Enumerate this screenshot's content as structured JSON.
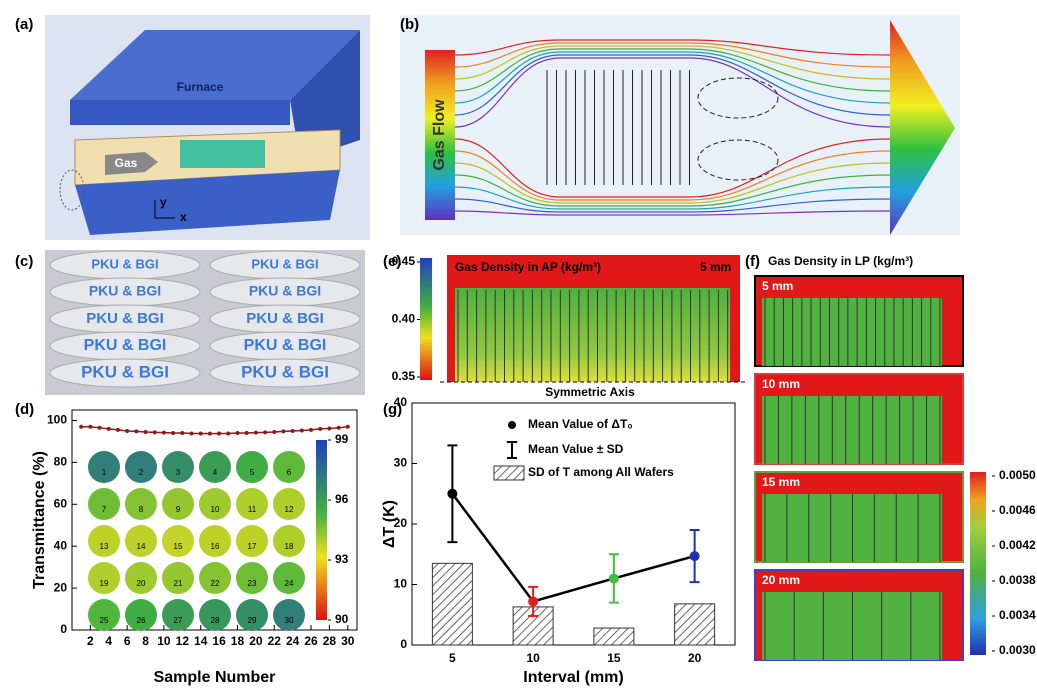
{
  "panels": {
    "a": {
      "label": "(a)",
      "furnace": "Furnace",
      "gas": "Gas",
      "axis_y": "y",
      "axis_x": "x"
    },
    "b": {
      "label": "(b)",
      "gas_flow": "Gas Flow"
    },
    "c": {
      "label": "(c)",
      "wafer_texts": [
        "PKU & BGI",
        "PKU & BGI",
        "PKU & BGI",
        "PKU & BGI",
        "PKU & BGI",
        "PKU & BGI",
        "PKU & BGI",
        "PKU & BGI",
        "PKU & BGI",
        "PKU & BGI"
      ]
    },
    "e": {
      "label": "(e)",
      "title": "Gas Density in AP (kg/m³)",
      "interval": "5 mm",
      "axis": "Symmetric Axis",
      "colorbar": {
        "lim": [
          0.35,
          0.45
        ],
        "ticks": [
          0.35,
          {
            "value": 0.4,
            "label": "0.40"
          },
          0.45
        ]
      }
    },
    "f": {
      "label": "(f)",
      "title": "Gas Density in LP (kg/m³)",
      "intervals": [
        "5 mm",
        "10 mm",
        "15 mm",
        "20 mm"
      ],
      "colorbar": {
        "lim": [
          0.003,
          0.005
        ],
        "ticks": [
          {
            "value": 0.005,
            "label": "0.0050"
          },
          0.0046,
          0.0042,
          0.0038,
          0.0034,
          {
            "value": 0.003,
            "label": "0.0030"
          }
        ]
      }
    }
  },
  "chart_data": [
    {
      "type": "line",
      "label": "(d)",
      "x_label": "Sample Number",
      "y_label": "Transmittance (%)",
      "x": [
        1,
        2,
        3,
        4,
        5,
        6,
        7,
        8,
        9,
        10,
        11,
        12,
        13,
        14,
        15,
        16,
        17,
        18,
        19,
        20,
        21,
        22,
        23,
        24,
        25,
        26,
        27,
        28,
        29,
        30
      ],
      "series": [
        {
          "name": "Transmittance",
          "color": "#8b1a1a",
          "values": [
            97,
            97,
            96.5,
            96,
            95.5,
            95,
            94.8,
            94.5,
            94.3,
            94.2,
            94,
            94,
            93.8,
            93.8,
            93.7,
            93.8,
            93.8,
            94,
            94,
            94.2,
            94.3,
            94.5,
            94.8,
            95,
            95.2,
            95.5,
            96,
            96.2,
            96.5,
            97
          ]
        }
      ],
      "xlim": [
        0,
        31
      ],
      "ylim": [
        0,
        105
      ],
      "xticks": [
        2,
        4,
        6,
        8,
        10,
        12,
        14,
        16,
        18,
        20,
        22,
        24,
        26,
        28,
        30
      ],
      "yticks": [
        0,
        20,
        40,
        60,
        80,
        100
      ],
      "inset": {
        "colorbar": {
          "lim": [
            90,
            99
          ],
          "ticks": [
            90,
            93,
            96,
            99
          ]
        }
      }
    },
    {
      "type": "combo",
      "label": "(g)",
      "x_label": "Interval (mm)",
      "y_label": "ΔT (K)",
      "categories": [
        "5",
        "10",
        "15",
        "20"
      ],
      "mean": {
        "name": "Mean Value of ΔT₀",
        "color": "#000000",
        "values": [
          25,
          7.2,
          11,
          14.7
        ]
      },
      "sd": {
        "name": "Mean Value ± SD",
        "colors": [
          "#000000",
          "#e02020",
          "#40c040",
          "#2030b0"
        ],
        "values": [
          8,
          2.4,
          4,
          4.3
        ]
      },
      "bars": {
        "name": "SD of T among All Wafers",
        "values": [
          13.5,
          6.3,
          2.8,
          6.8
        ]
      },
      "ylim": [
        0,
        40
      ],
      "yticks": [
        0,
        10,
        20,
        30,
        40
      ]
    }
  ]
}
